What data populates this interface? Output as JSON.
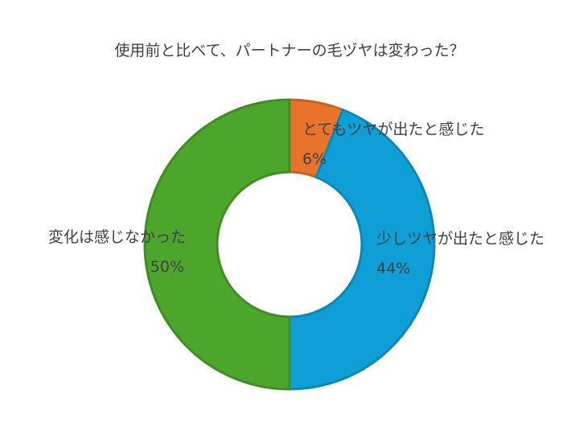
{
  "chart_data": {
    "type": "pie",
    "title": "使用前と比べて、パートナーの毛ヅヤは変わった？",
    "donut": true,
    "slices": [
      {
        "label": "とてもツヤが出たと感じた",
        "value": 6,
        "display": "6%",
        "color": "#e8732a"
      },
      {
        "label": "少しツヤが出たと感じた",
        "value": 44,
        "display": "44%",
        "color": "#0f9fd7"
      },
      {
        "label": "変化は感じなかった",
        "value": 50,
        "display": "50%",
        "color": "#4ca62b"
      }
    ],
    "legend": "none"
  }
}
